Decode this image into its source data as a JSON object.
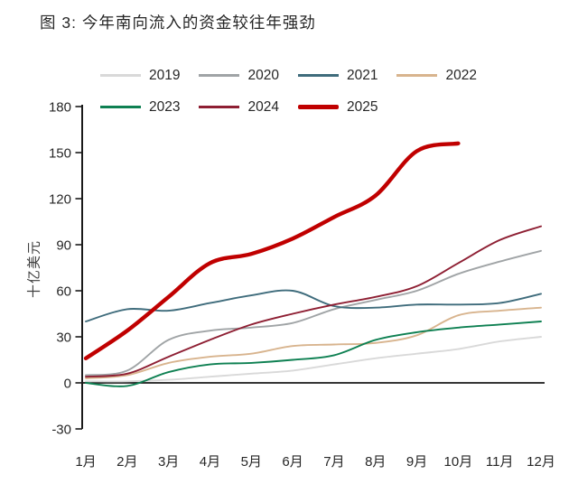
{
  "title": "图 3: 今年南向流入的资金较往年强劲",
  "chart_data": {
    "type": "line",
    "title": "图 3: 今年南向流入的资金较往年强劲",
    "xlabel": "",
    "ylabel": "十亿美元",
    "ylim": [
      -30,
      180
    ],
    "yticks": [
      180,
      150,
      120,
      90,
      60,
      30,
      0,
      -30
    ],
    "grid": false,
    "legend_position": "top",
    "categories": [
      "1月",
      "2月",
      "3月",
      "4月",
      "5月",
      "6月",
      "7月",
      "8月",
      "9月",
      "10月",
      "11月",
      "12月"
    ],
    "series": [
      {
        "name": "2019",
        "color": "#d9d9d9",
        "weight": "thin",
        "values": [
          1,
          1,
          2,
          4,
          6,
          8,
          12,
          16,
          19,
          22,
          27,
          30
        ]
      },
      {
        "name": "2020",
        "color": "#a0a4a6",
        "weight": "thin",
        "values": [
          5,
          8,
          28,
          34,
          36,
          39,
          48,
          54,
          60,
          71,
          79,
          86
        ]
      },
      {
        "name": "2021",
        "color": "#3f6c7c",
        "weight": "thin",
        "values": [
          40,
          48,
          47,
          52,
          57,
          60,
          50,
          49,
          51,
          51,
          52,
          58
        ]
      },
      {
        "name": "2022",
        "color": "#d8b48e",
        "weight": "thin",
        "values": [
          3,
          5,
          13,
          17,
          19,
          24,
          25,
          26,
          31,
          44,
          47,
          49
        ]
      },
      {
        "name": "2023",
        "color": "#0e8052",
        "weight": "thin",
        "values": [
          0,
          -2,
          7,
          12,
          13,
          15,
          18,
          28,
          33,
          36,
          38,
          40
        ]
      },
      {
        "name": "2024",
        "color": "#8e1f33",
        "weight": "thin",
        "values": [
          4,
          6,
          17,
          28,
          38,
          45,
          51,
          56,
          63,
          78,
          93,
          102
        ]
      },
      {
        "name": "2025",
        "color": "#c00000",
        "weight": "thick",
        "values": [
          16,
          34,
          56,
          78,
          84,
          94,
          108,
          122,
          151,
          156,
          null,
          null
        ]
      }
    ]
  }
}
